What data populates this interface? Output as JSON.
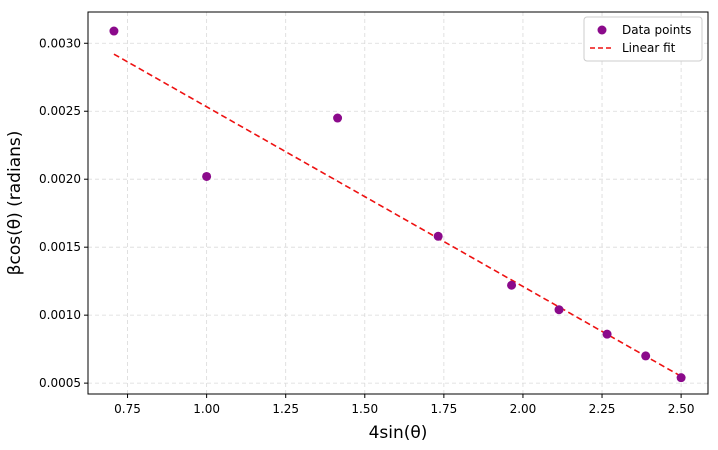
{
  "chart_data": {
    "type": "scatter",
    "title": "",
    "xlabel": "4sin(θ)",
    "ylabel": "βcos(θ) (radians)",
    "xlim": [
      0.625,
      2.585
    ],
    "ylim": [
      0.00042,
      0.00323
    ],
    "x_ticks": [
      0.75,
      1.0,
      1.25,
      1.5,
      1.75,
      2.0,
      2.25,
      2.5
    ],
    "x_tick_labels": [
      "0.75",
      "1.00",
      "1.25",
      "1.50",
      "1.75",
      "2.00",
      "2.25",
      "2.50"
    ],
    "y_ticks": [
      0.0005,
      0.001,
      0.0015,
      0.002,
      0.0025,
      0.003
    ],
    "y_tick_labels": [
      "0.0005",
      "0.0010",
      "0.0015",
      "0.0020",
      "0.0025",
      "0.0030"
    ],
    "grid": true,
    "legend_position": "top-right",
    "series": [
      {
        "name": "Data points",
        "kind": "scatter",
        "color": "#8b0a8b",
        "points": [
          {
            "x": 0.707,
            "y": 0.00309
          },
          {
            "x": 1.0,
            "y": 0.00202
          },
          {
            "x": 1.414,
            "y": 0.00245
          },
          {
            "x": 1.732,
            "y": 0.00158
          },
          {
            "x": 1.964,
            "y": 0.00122
          },
          {
            "x": 2.114,
            "y": 0.00104
          },
          {
            "x": 2.266,
            "y": 0.00086
          },
          {
            "x": 2.388,
            "y": 0.0007
          },
          {
            "x": 2.5,
            "y": 0.00054
          }
        ]
      },
      {
        "name": "Linear fit",
        "kind": "line",
        "style": "dashed",
        "color": "#ee1111",
        "points": [
          {
            "x": 0.707,
            "y": 0.00292
          },
          {
            "x": 2.5,
            "y": 0.00055
          }
        ]
      }
    ]
  }
}
